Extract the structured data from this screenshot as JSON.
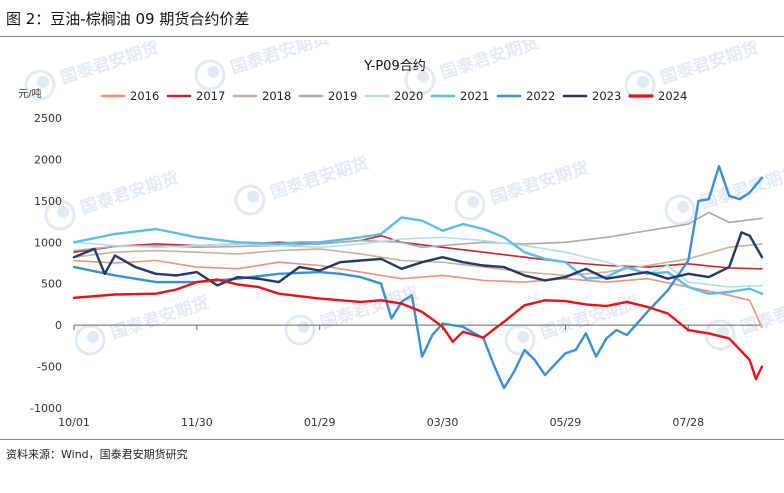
{
  "figure": {
    "title": "图 2：豆油-棕榈油 09 期货合约价差",
    "source": "资料来源：Wind，国泰君安期货研究",
    "watermark": "国泰君安期货"
  },
  "chart_data": {
    "type": "line",
    "title": "Y-P09合约",
    "unit_label": "元/吨",
    "ylim": [
      -1000,
      2500
    ],
    "yticks": [
      -1000,
      -500,
      0,
      500,
      1000,
      1500,
      2000,
      2500
    ],
    "xlim": [
      0,
      336
    ],
    "xticks": [
      {
        "x": 0,
        "label": "10/01"
      },
      {
        "x": 60,
        "label": "11/30"
      },
      {
        "x": 120,
        "label": "01/29"
      },
      {
        "x": 180,
        "label": "03/30"
      },
      {
        "x": 240,
        "label": "05/29"
      },
      {
        "x": 300,
        "label": "07/28"
      }
    ],
    "legend_position": "top",
    "series": [
      {
        "name": "2016",
        "color": "#f0917a",
        "points": [
          [
            0,
            780
          ],
          [
            20,
            750
          ],
          [
            40,
            780
          ],
          [
            60,
            700
          ],
          [
            80,
            680
          ],
          [
            100,
            760
          ],
          [
            120,
            720
          ],
          [
            140,
            640
          ],
          [
            160,
            560
          ],
          [
            180,
            600
          ],
          [
            200,
            540
          ],
          [
            220,
            520
          ],
          [
            240,
            560
          ],
          [
            260,
            520
          ],
          [
            280,
            560
          ],
          [
            300,
            460
          ],
          [
            320,
            360
          ],
          [
            330,
            300
          ],
          [
            336,
            -30
          ]
        ]
      },
      {
        "name": "2017",
        "color": "#c0282d",
        "points": [
          [
            0,
            880
          ],
          [
            20,
            950
          ],
          [
            40,
            980
          ],
          [
            60,
            960
          ],
          [
            80,
            980
          ],
          [
            100,
            1000
          ],
          [
            120,
            980
          ],
          [
            140,
            1020
          ],
          [
            150,
            1080
          ],
          [
            160,
            1000
          ],
          [
            180,
            940
          ],
          [
            200,
            880
          ],
          [
            220,
            820
          ],
          [
            240,
            760
          ],
          [
            260,
            720
          ],
          [
            280,
            700
          ],
          [
            300,
            740
          ],
          [
            320,
            690
          ],
          [
            336,
            680
          ]
        ]
      },
      {
        "name": "2018",
        "color": "#c8b39a",
        "points": [
          [
            0,
            820
          ],
          [
            20,
            880
          ],
          [
            40,
            900
          ],
          [
            60,
            880
          ],
          [
            80,
            860
          ],
          [
            100,
            900
          ],
          [
            120,
            920
          ],
          [
            140,
            860
          ],
          [
            160,
            780
          ],
          [
            180,
            760
          ],
          [
            200,
            700
          ],
          [
            220,
            640
          ],
          [
            240,
            600
          ],
          [
            260,
            640
          ],
          [
            280,
            720
          ],
          [
            300,
            800
          ],
          [
            320,
            940
          ],
          [
            336,
            980
          ]
        ]
      },
      {
        "name": "2019",
        "color": "#ababab",
        "points": [
          [
            0,
            900
          ],
          [
            20,
            950
          ],
          [
            40,
            960
          ],
          [
            60,
            940
          ],
          [
            80,
            950
          ],
          [
            100,
            960
          ],
          [
            120,
            980
          ],
          [
            140,
            1020
          ],
          [
            160,
            1000
          ],
          [
            170,
            940
          ],
          [
            180,
            960
          ],
          [
            200,
            1000
          ],
          [
            220,
            980
          ],
          [
            240,
            1000
          ],
          [
            260,
            1060
          ],
          [
            280,
            1140
          ],
          [
            300,
            1220
          ],
          [
            310,
            1360
          ],
          [
            320,
            1240
          ],
          [
            336,
            1290
          ]
        ]
      },
      {
        "name": "2020",
        "color": "#b5dcee",
        "points": [
          [
            0,
            1000
          ],
          [
            20,
            960
          ],
          [
            40,
            940
          ],
          [
            60,
            960
          ],
          [
            80,
            980
          ],
          [
            100,
            960
          ],
          [
            120,
            940
          ],
          [
            140,
            980
          ],
          [
            160,
            1040
          ],
          [
            180,
            1060
          ],
          [
            200,
            1020
          ],
          [
            220,
            960
          ],
          [
            240,
            880
          ],
          [
            260,
            760
          ],
          [
            280,
            620
          ],
          [
            290,
            720
          ],
          [
            300,
            520
          ],
          [
            320,
            460
          ],
          [
            336,
            480
          ]
        ]
      },
      {
        "name": "2021",
        "color": "#5bbde6",
        "points": [
          [
            0,
            1000
          ],
          [
            20,
            1100
          ],
          [
            40,
            1160
          ],
          [
            60,
            1060
          ],
          [
            80,
            1000
          ],
          [
            100,
            980
          ],
          [
            110,
            1000
          ],
          [
            120,
            1000
          ],
          [
            140,
            1060
          ],
          [
            150,
            1100
          ],
          [
            160,
            1300
          ],
          [
            170,
            1260
          ],
          [
            180,
            1140
          ],
          [
            190,
            1220
          ],
          [
            200,
            1160
          ],
          [
            210,
            1060
          ],
          [
            220,
            880
          ],
          [
            230,
            800
          ],
          [
            240,
            760
          ],
          [
            250,
            560
          ],
          [
            260,
            580
          ],
          [
            270,
            700
          ],
          [
            280,
            620
          ],
          [
            290,
            640
          ],
          [
            300,
            460
          ],
          [
            310,
            380
          ],
          [
            320,
            400
          ],
          [
            330,
            440
          ],
          [
            336,
            380
          ]
        ]
      },
      {
        "name": "2022",
        "color": "#3a8fd6",
        "points": [
          [
            0,
            700
          ],
          [
            20,
            600
          ],
          [
            40,
            520
          ],
          [
            60,
            520
          ],
          [
            80,
            560
          ],
          [
            100,
            620
          ],
          [
            120,
            640
          ],
          [
            130,
            620
          ],
          [
            140,
            580
          ],
          [
            150,
            500
          ],
          [
            155,
            80
          ],
          [
            160,
            280
          ],
          [
            165,
            360
          ],
          [
            170,
            -380
          ],
          [
            175,
            -120
          ],
          [
            180,
            20
          ],
          [
            190,
            -20
          ],
          [
            200,
            -160
          ],
          [
            205,
            -480
          ],
          [
            210,
            -760
          ],
          [
            215,
            -560
          ],
          [
            220,
            -300
          ],
          [
            225,
            -420
          ],
          [
            230,
            -600
          ],
          [
            240,
            -340
          ],
          [
            245,
            -300
          ],
          [
            250,
            -100
          ],
          [
            255,
            -380
          ],
          [
            260,
            -160
          ],
          [
            265,
            -60
          ],
          [
            270,
            -120
          ],
          [
            280,
            160
          ],
          [
            290,
            420
          ],
          [
            300,
            780
          ],
          [
            305,
            1500
          ],
          [
            310,
            1520
          ],
          [
            315,
            1920
          ],
          [
            320,
            1560
          ],
          [
            325,
            1520
          ],
          [
            330,
            1600
          ],
          [
            336,
            1780
          ]
        ]
      },
      {
        "name": "2023",
        "color": "#1f3b6b",
        "points": [
          [
            0,
            820
          ],
          [
            10,
            920
          ],
          [
            15,
            620
          ],
          [
            20,
            840
          ],
          [
            30,
            700
          ],
          [
            40,
            620
          ],
          [
            50,
            600
          ],
          [
            60,
            640
          ],
          [
            70,
            480
          ],
          [
            80,
            580
          ],
          [
            90,
            560
          ],
          [
            100,
            520
          ],
          [
            110,
            700
          ],
          [
            120,
            660
          ],
          [
            130,
            760
          ],
          [
            140,
            780
          ],
          [
            150,
            800
          ],
          [
            160,
            680
          ],
          [
            170,
            760
          ],
          [
            180,
            820
          ],
          [
            190,
            760
          ],
          [
            200,
            720
          ],
          [
            210,
            700
          ],
          [
            220,
            600
          ],
          [
            230,
            540
          ],
          [
            240,
            580
          ],
          [
            250,
            680
          ],
          [
            260,
            560
          ],
          [
            270,
            600
          ],
          [
            280,
            640
          ],
          [
            290,
            560
          ],
          [
            300,
            620
          ],
          [
            310,
            580
          ],
          [
            320,
            700
          ],
          [
            326,
            1120
          ],
          [
            330,
            1080
          ],
          [
            336,
            820
          ]
        ]
      },
      {
        "name": "2024",
        "color": "#e3131b",
        "points": [
          [
            0,
            330
          ],
          [
            20,
            370
          ],
          [
            40,
            380
          ],
          [
            50,
            430
          ],
          [
            60,
            520
          ],
          [
            70,
            550
          ],
          [
            80,
            490
          ],
          [
            90,
            460
          ],
          [
            100,
            380
          ],
          [
            120,
            320
          ],
          [
            140,
            280
          ],
          [
            150,
            300
          ],
          [
            160,
            260
          ],
          [
            170,
            160
          ],
          [
            180,
            -20
          ],
          [
            185,
            -200
          ],
          [
            190,
            -80
          ],
          [
            200,
            -150
          ],
          [
            205,
            -50
          ],
          [
            210,
            40
          ],
          [
            220,
            240
          ],
          [
            230,
            300
          ],
          [
            240,
            290
          ],
          [
            250,
            250
          ],
          [
            260,
            230
          ],
          [
            270,
            280
          ],
          [
            280,
            220
          ],
          [
            290,
            140
          ],
          [
            300,
            -60
          ],
          [
            310,
            -100
          ],
          [
            320,
            -160
          ],
          [
            330,
            -420
          ],
          [
            333,
            -650
          ],
          [
            336,
            -500
          ]
        ]
      }
    ]
  }
}
